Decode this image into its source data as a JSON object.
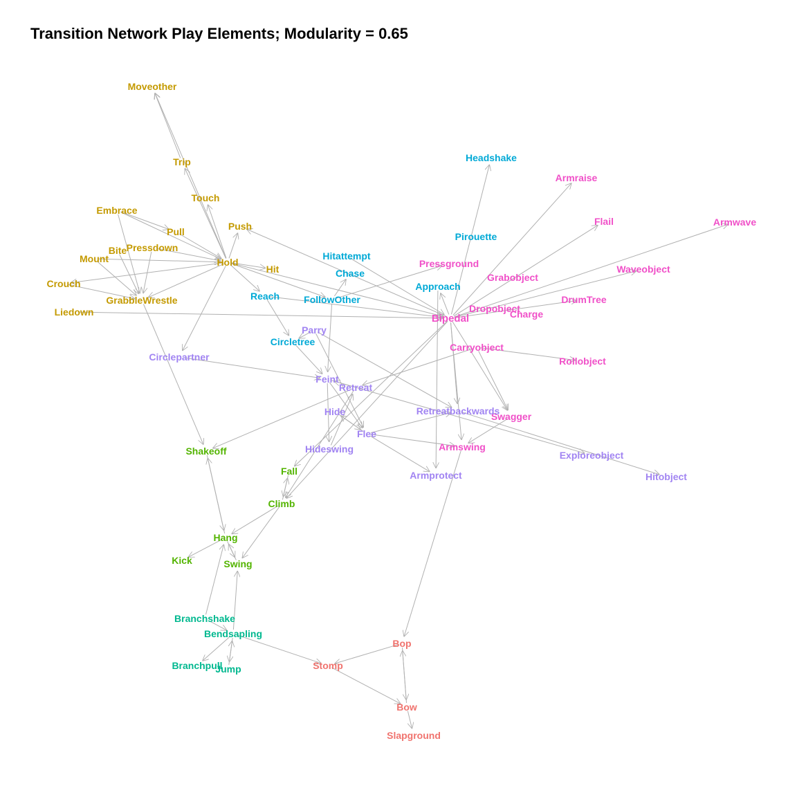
{
  "title": "Transition Network Play Elements; Modularity = 0.65",
  "module_colors": {
    "gold": "#C49A00",
    "cyan": "#00A9D6",
    "magenta": "#F050C8",
    "purple": "#A184F2",
    "green": "#53B400",
    "teal": "#00B88F",
    "red": "#F0736E"
  },
  "edge_color": "#b0b0b0",
  "nodes": [
    {
      "id": "Moveother",
      "module": "gold"
    },
    {
      "id": "Trip",
      "module": "gold"
    },
    {
      "id": "Touch",
      "module": "gold"
    },
    {
      "id": "Embrace",
      "module": "gold"
    },
    {
      "id": "Push",
      "module": "gold"
    },
    {
      "id": "Pull",
      "module": "gold"
    },
    {
      "id": "Pressdown",
      "module": "gold"
    },
    {
      "id": "Bite",
      "module": "gold"
    },
    {
      "id": "Mount",
      "module": "gold"
    },
    {
      "id": "Hold",
      "module": "gold"
    },
    {
      "id": "Hit",
      "module": "gold"
    },
    {
      "id": "Crouch",
      "module": "gold"
    },
    {
      "id": "GrabbleWrestle",
      "module": "gold"
    },
    {
      "id": "Liedown",
      "module": "gold"
    },
    {
      "id": "Headshake",
      "module": "cyan"
    },
    {
      "id": "Pirouette",
      "module": "cyan"
    },
    {
      "id": "Hitattempt",
      "module": "cyan"
    },
    {
      "id": "Chase",
      "module": "cyan"
    },
    {
      "id": "Approach",
      "module": "cyan"
    },
    {
      "id": "Reach",
      "module": "cyan"
    },
    {
      "id": "FollowOther",
      "module": "cyan"
    },
    {
      "id": "Circletree",
      "module": "cyan"
    },
    {
      "id": "Armraise",
      "module": "magenta"
    },
    {
      "id": "Flail",
      "module": "magenta"
    },
    {
      "id": "Armwave",
      "module": "magenta"
    },
    {
      "id": "Pressground",
      "module": "magenta"
    },
    {
      "id": "Waveobject",
      "module": "magenta"
    },
    {
      "id": "Grabobject",
      "module": "magenta"
    },
    {
      "id": "DrumTree",
      "module": "magenta"
    },
    {
      "id": "Dropobject",
      "module": "magenta"
    },
    {
      "id": "Charge",
      "module": "magenta"
    },
    {
      "id": "Bipedal",
      "module": "magenta"
    },
    {
      "id": "Carryobject",
      "module": "magenta"
    },
    {
      "id": "Rollobject",
      "module": "magenta"
    },
    {
      "id": "Swagger",
      "module": "magenta"
    },
    {
      "id": "Armswing",
      "module": "magenta"
    },
    {
      "id": "Parry",
      "module": "purple"
    },
    {
      "id": "Circlepartner",
      "module": "purple"
    },
    {
      "id": "Feint",
      "module": "purple"
    },
    {
      "id": "Retreat",
      "module": "purple"
    },
    {
      "id": "Hide",
      "module": "purple"
    },
    {
      "id": "Retreatbackwards",
      "module": "purple"
    },
    {
      "id": "Flee",
      "module": "purple"
    },
    {
      "id": "Hideswing",
      "module": "purple"
    },
    {
      "id": "Exploreobject",
      "module": "purple"
    },
    {
      "id": "Hitobject",
      "module": "purple"
    },
    {
      "id": "Armprotect",
      "module": "purple"
    },
    {
      "id": "Shakeoff",
      "module": "green"
    },
    {
      "id": "Fall",
      "module": "green"
    },
    {
      "id": "Climb",
      "module": "green"
    },
    {
      "id": "Hang",
      "module": "green"
    },
    {
      "id": "Kick",
      "module": "green"
    },
    {
      "id": "Swing",
      "module": "green"
    },
    {
      "id": "Branchshake",
      "module": "teal"
    },
    {
      "id": "Bendsapling",
      "module": "teal"
    },
    {
      "id": "Branchpull",
      "module": "teal"
    },
    {
      "id": "Jump",
      "module": "teal"
    },
    {
      "id": "Bop",
      "module": "red"
    },
    {
      "id": "Stomp",
      "module": "red"
    },
    {
      "id": "Bow",
      "module": "red"
    },
    {
      "id": "Slapground",
      "module": "red"
    }
  ],
  "edges": [
    [
      "Trip",
      "Moveother"
    ],
    [
      "Hold",
      "Moveother"
    ],
    [
      "Hold",
      "Trip"
    ],
    [
      "Hold",
      "Touch"
    ],
    [
      "Embrace",
      "Pull"
    ],
    [
      "Embrace",
      "Hold"
    ],
    [
      "Embrace",
      "GrabbleWrestle"
    ],
    [
      "Hold",
      "Push"
    ],
    [
      "Pull",
      "Hold"
    ],
    [
      "Pressdown",
      "Hold"
    ],
    [
      "Pressdown",
      "GrabbleWrestle"
    ],
    [
      "Bite",
      "GrabbleWrestle"
    ],
    [
      "Mount",
      "Hold"
    ],
    [
      "Mount",
      "GrabbleWrestle"
    ],
    [
      "Hold",
      "GrabbleWrestle"
    ],
    [
      "Hold",
      "Crouch"
    ],
    [
      "Hold",
      "Hit"
    ],
    [
      "Hold",
      "Circlepartner"
    ],
    [
      "Hold",
      "Reach"
    ],
    [
      "Hold",
      "FollowOther"
    ],
    [
      "Hold",
      "Bipedal"
    ],
    [
      "Crouch",
      "GrabbleWrestle"
    ],
    [
      "Liedown",
      "Bipedal"
    ],
    [
      "GrabbleWrestle",
      "Shakeoff"
    ],
    [
      "Bipedal",
      "Headshake"
    ],
    [
      "Bipedal",
      "Armraise"
    ],
    [
      "Bipedal",
      "Flail"
    ],
    [
      "Bipedal",
      "Armwave"
    ],
    [
      "Bipedal",
      "Waveobject"
    ],
    [
      "Bipedal",
      "DrumTree"
    ],
    [
      "Bipedal",
      "Approach"
    ],
    [
      "Bipedal",
      "Push"
    ],
    [
      "Bipedal",
      "Armswing"
    ],
    [
      "Bipedal",
      "Swagger"
    ],
    [
      "Bipedal",
      "Retreatbackwards"
    ],
    [
      "Bipedal",
      "Climb"
    ],
    [
      "Bipedal",
      "Fall"
    ],
    [
      "Hitattempt",
      "Bipedal"
    ],
    [
      "Reach",
      "Bipedal"
    ],
    [
      "FollowOther",
      "Chase"
    ],
    [
      "FollowOther",
      "Feint"
    ],
    [
      "FollowOther",
      "Pressground"
    ],
    [
      "Reach",
      "Circletree"
    ],
    [
      "Circletree",
      "Feint"
    ],
    [
      "Parry",
      "Flee"
    ],
    [
      "Parry",
      "Retreatbackwards"
    ],
    [
      "Parry",
      "Circletree"
    ],
    [
      "Circlepartner",
      "Feint"
    ],
    [
      "Feint",
      "Flee"
    ],
    [
      "Feint",
      "Hideswing"
    ],
    [
      "Feint",
      "Exploreobject"
    ],
    [
      "Retreat",
      "Feint"
    ],
    [
      "Retreat",
      "Shakeoff"
    ],
    [
      "Retreat",
      "Climb"
    ],
    [
      "Hideswing",
      "Retreat"
    ],
    [
      "Hide",
      "Flee"
    ],
    [
      "Flee",
      "Hide"
    ],
    [
      "Flee",
      "Retreatbackwards"
    ],
    [
      "Flee",
      "Armprotect"
    ],
    [
      "Flee",
      "Armswing"
    ],
    [
      "Retreatbackwards",
      "Hitobject"
    ],
    [
      "Carryobject",
      "Rollobject"
    ],
    [
      "Carryobject",
      "Retreat"
    ],
    [
      "Carryobject",
      "Swagger"
    ],
    [
      "Approach",
      "Armprotect"
    ],
    [
      "Swagger",
      "Armswing"
    ],
    [
      "Armswing",
      "Bop"
    ],
    [
      "Shakeoff",
      "Hang"
    ],
    [
      "Hang",
      "Shakeoff"
    ],
    [
      "Fall",
      "Climb"
    ],
    [
      "Climb",
      "Fall"
    ],
    [
      "Climb",
      "Hang"
    ],
    [
      "Climb",
      "Swing"
    ],
    [
      "Hang",
      "Kick"
    ],
    [
      "Hang",
      "Swing"
    ],
    [
      "Swing",
      "Hang"
    ],
    [
      "Branchshake",
      "Hang"
    ],
    [
      "Bendsapling",
      "Swing"
    ],
    [
      "Branchshake",
      "Bendsapling"
    ],
    [
      "Bendsapling",
      "Branchpull"
    ],
    [
      "Bendsapling",
      "Jump"
    ],
    [
      "Jump",
      "Bendsapling"
    ],
    [
      "Bendsapling",
      "Stomp"
    ],
    [
      "Bop",
      "Stomp"
    ],
    [
      "Stomp",
      "Bow"
    ],
    [
      "Bop",
      "Bow"
    ],
    [
      "Bow",
      "Bop"
    ],
    [
      "Bow",
      "Slapground"
    ]
  ]
}
